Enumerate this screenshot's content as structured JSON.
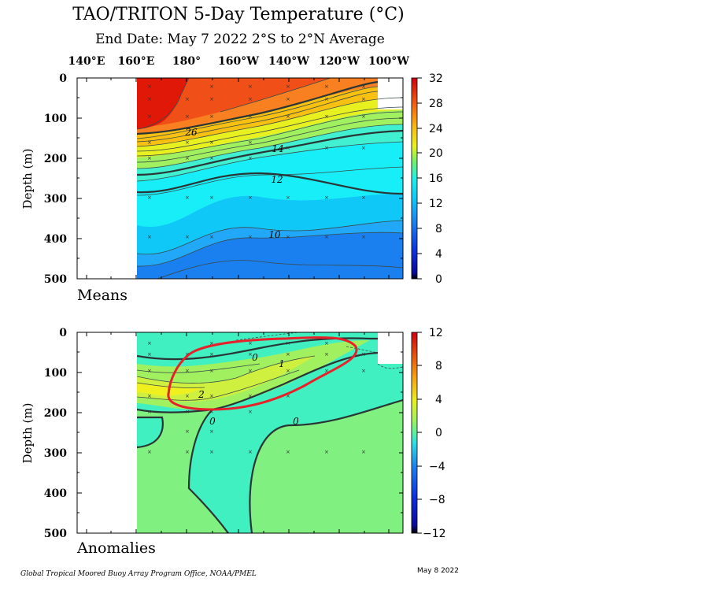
{
  "title": "TAO/TRITON 5-Day Temperature (°C)",
  "subtitle": "End Date: May 7 2022  2°S to 2°N Average",
  "footer_left": "Global Tropical Moored Buoy Array Program Office, NOAA/PMEL",
  "footer_right": "May  8 2022",
  "colors": {
    "highlight_circle": "#e8202a",
    "contour_line": "#3a4a4a"
  },
  "chart_data": [
    {
      "type": "heatmap",
      "panel_label": "Means",
      "xlabel": "",
      "ylabel": "Depth (m)",
      "x_ticks": [
        "140°E",
        "160°E",
        "180°",
        "160°W",
        "140°W",
        "120°W",
        "100°W"
      ],
      "y_ticks": [
        "0",
        "100",
        "200",
        "300",
        "400",
        "500"
      ],
      "ylim": [
        500,
        0
      ],
      "colorbar": {
        "min": 0,
        "max": 32,
        "ticks": [
          "32",
          "28",
          "24",
          "20",
          "16",
          "12",
          "8",
          "4",
          "0"
        ]
      },
      "contour_labels": [
        "26",
        "14",
        "12",
        "10"
      ],
      "description_values": {
        "surface_west_temp": 30,
        "surface_east_temp": 27,
        "thermocline_depth_west_m": 200,
        "thermocline_depth_east_m": 50
      }
    },
    {
      "type": "heatmap",
      "panel_label": "Anomalies",
      "xlabel": "",
      "ylabel": "Depth (m)",
      "x_ticks": [
        "140°E",
        "160°E",
        "180°",
        "160°W",
        "140°W",
        "120°W",
        "100°W"
      ],
      "y_ticks": [
        "0",
        "100",
        "200",
        "300",
        "400",
        "500"
      ],
      "ylim": [
        500,
        0
      ],
      "colorbar": {
        "min": -12,
        "max": 12,
        "ticks": [
          "12",
          "8",
          "4",
          "0",
          "−4",
          "−8",
          "−12"
        ]
      },
      "contour_labels": [
        "0",
        "1",
        "2",
        "0",
        "0"
      ],
      "max_anomaly": 2
    }
  ]
}
